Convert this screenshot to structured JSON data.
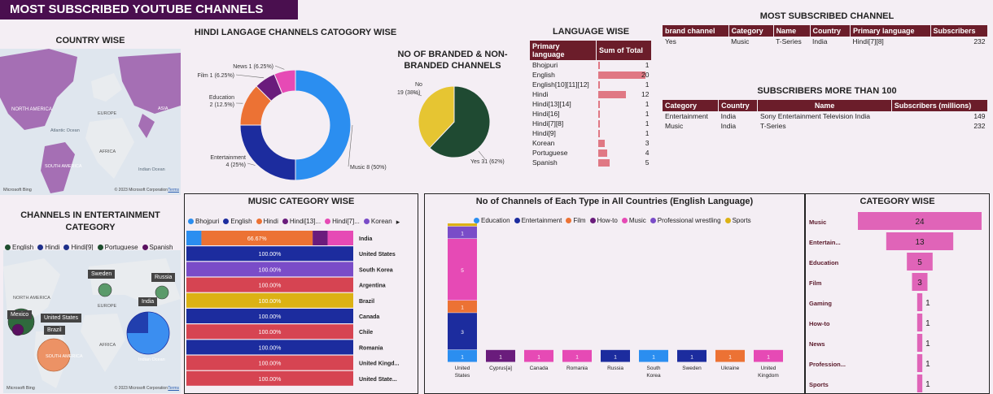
{
  "header": {
    "title": "MOST SUBSCRIBED YOUTUBE CHANNELS"
  },
  "country_map": {
    "title": "COUNTRY WISE",
    "labels": [
      "NORTH AMERICA",
      "Atlantic Ocean",
      "EUROPE",
      "AFRICA",
      "ASIA",
      "SOUTH AMERICA",
      "Indian Ocean"
    ],
    "credit": "© 2023 Microsoft Corporation",
    "credit_link": "Terms",
    "bing": "Microsoft Bing"
  },
  "ent_map": {
    "title": "CHANNELS IN ENTERTAINMENT CATEGORY",
    "legend": [
      {
        "name": "English",
        "color": "#1f4d2e"
      },
      {
        "name": "Hindi",
        "color": "#1f2f8a"
      },
      {
        "name": "Hindi[9]",
        "color": "#1f2f8a"
      },
      {
        "name": "Portuguese",
        "color": "#1f4d2e"
      },
      {
        "name": "Spanish",
        "color": "#5a1060"
      }
    ],
    "pins": [
      "Sweden",
      "Russia",
      "Mexico",
      "United States",
      "India",
      "Brazil"
    ],
    "labels": [
      "NORTH AMERICA",
      "EUROPE",
      "AFRICA",
      "SOUTH AMERICA",
      "Indian Ocean"
    ],
    "credit": "© 2023 Microsoft Corporation",
    "credit_link": "Terms",
    "bing": "Microsoft Bing"
  },
  "hindi_donut": {
    "title": "HINDI LANGAGE CHANNELS CATOGORY WISE"
  },
  "branded_pie": {
    "title": "NO OF BRANDED & NON-BRANDED CHANNELS"
  },
  "language_table": {
    "title": "LANGUAGE WISE",
    "columns": [
      "Primary language",
      "Sum of Total"
    ]
  },
  "most_sub": {
    "title": "MOST SUBSCRIBED CHANNEL",
    "columns": [
      "brand channel",
      "Category",
      "Name",
      "Country",
      "Primary language",
      "Subscribers"
    ],
    "row": [
      "Yes",
      "Music",
      "T-Series",
      "India",
      "Hindi[7][8]",
      "232"
    ]
  },
  "over100": {
    "title": "SUBSCRIBERS MORE THAN 100",
    "columns": [
      "Category",
      "Country",
      "Name",
      "Subscribers (millions)"
    ],
    "rows": [
      [
        "Entertainment",
        "India",
        "Sony Entertainment Television India",
        "149"
      ],
      [
        "Music",
        "India",
        "T-Series",
        "232"
      ]
    ]
  },
  "music_cat": {
    "title": "MUSIC CATEGORY WISE"
  },
  "channels_type": {
    "title": "No of Channels of Each Type in All Countries (English Language)"
  },
  "category_wise": {
    "title": "CATEGORY WISE"
  },
  "chart_data": [
    {
      "type": "pie",
      "id": "hindi",
      "slices": [
        {
          "label": "Music",
          "value": 8,
          "pct": "50%",
          "color": "#2b8ef0"
        },
        {
          "label": "Entertainment",
          "value": 4,
          "pct": "25%",
          "color": "#1c2c9e"
        },
        {
          "label": "Education",
          "value": 2,
          "pct": "12.5%",
          "color": "#ec7234"
        },
        {
          "label": "Film",
          "value": 1,
          "pct": "6.25%",
          "color": "#6a1c7c"
        },
        {
          "label": "News",
          "value": 1,
          "pct": "6.25%",
          "color": "#e64ab5"
        }
      ],
      "donut": true
    },
    {
      "type": "pie",
      "id": "branded",
      "slices": [
        {
          "label": "Yes",
          "value": 31,
          "pct": "62%",
          "color": "#1f4a32"
        },
        {
          "label": "No",
          "value": 19,
          "pct": "38%",
          "color": "#e6c532"
        }
      ]
    },
    {
      "type": "bar",
      "id": "language",
      "categories": [
        "Bhojpuri",
        "English",
        "English[10][11][12]",
        "Hindi",
        "Hindi[13][14]",
        "Hindi[16]",
        "Hindi[7][8]",
        "Hindi[9]",
        "Korean",
        "Portuguese",
        "Spanish"
      ],
      "values": [
        1,
        20,
        1,
        12,
        1,
        1,
        1,
        1,
        3,
        4,
        5
      ],
      "color": "#e07884"
    },
    {
      "type": "bar",
      "id": "music",
      "orientation": "horizontal-stacked-100",
      "legend": [
        {
          "name": "Bhojpuri",
          "color": "#2b8ef0"
        },
        {
          "name": "English",
          "color": "#1c2c9e"
        },
        {
          "name": "Hindi",
          "color": "#ec7234"
        },
        {
          "name": "Hindi[13]...",
          "color": "#6a1c7c"
        },
        {
          "name": "Hindi[7]...",
          "color": "#e64ab5"
        },
        {
          "name": "Korean",
          "color": "#7a4cc8"
        }
      ],
      "categories": [
        "India",
        "United States",
        "South Korea",
        "Argentina",
        "Brazil",
        "Canada",
        "Chile",
        "Romania",
        "United Kingd...",
        "United State..."
      ],
      "rows": [
        [
          {
            "color": "#2b8ef0",
            "pct": 9
          },
          {
            "color": "#ec7234",
            "pct": 66.67,
            "label": "66.67%"
          },
          {
            "color": "#6a1c7c",
            "pct": 9
          },
          {
            "color": "#e64ab5",
            "pct": 15.33
          }
        ],
        [
          {
            "color": "#1c2c9e",
            "pct": 100,
            "label": "100.00%"
          }
        ],
        [
          {
            "color": "#7a4cc8",
            "pct": 100,
            "label": "100.00%"
          }
        ],
        [
          {
            "color": "#d64452",
            "pct": 100,
            "label": "100.00%"
          }
        ],
        [
          {
            "color": "#dcb214",
            "pct": 100,
            "label": "100.00%"
          }
        ],
        [
          {
            "color": "#1c2c9e",
            "pct": 100,
            "label": "100.00%"
          }
        ],
        [
          {
            "color": "#d64452",
            "pct": 100,
            "label": "100.00%"
          }
        ],
        [
          {
            "color": "#1c2c9e",
            "pct": 100,
            "label": "100.00%"
          }
        ],
        [
          {
            "color": "#d64452",
            "pct": 100,
            "label": "100.00%"
          }
        ],
        [
          {
            "color": "#d64452",
            "pct": 100,
            "label": "100.00%"
          }
        ]
      ]
    },
    {
      "type": "bar",
      "id": "channels",
      "orientation": "vertical-stacked",
      "legend": [
        {
          "name": "Education",
          "color": "#2b8ef0"
        },
        {
          "name": "Entertainment",
          "color": "#1c2c9e"
        },
        {
          "name": "Film",
          "color": "#ec7234"
        },
        {
          "name": "How-to",
          "color": "#6a1c7c"
        },
        {
          "name": "Music",
          "color": "#e64ab5"
        },
        {
          "name": "Professional wrestling",
          "color": "#7a4cc8"
        },
        {
          "name": "Sports",
          "color": "#dcb214"
        }
      ],
      "categories": [
        "United States",
        "Cyprus[a]",
        "Canada",
        "Romania",
        "Russia",
        "South Korea",
        "Sweden",
        "Ukraine",
        "United Kingdom"
      ],
      "stacks": [
        [
          {
            "c": "#2b8ef0",
            "v": 1
          },
          {
            "c": "#1c2c9e",
            "v": 3
          },
          {
            "c": "#ec7234",
            "v": 1
          },
          {
            "c": "#e64ab5",
            "v": 5
          },
          {
            "c": "#7a4cc8",
            "v": 1
          },
          {
            "c": "#dcb214",
            "v": 1
          }
        ],
        [
          {
            "c": "#6a1c7c",
            "v": 1
          }
        ],
        [
          {
            "c": "#e64ab5",
            "v": 1
          }
        ],
        [
          {
            "c": "#e64ab5",
            "v": 1
          }
        ],
        [
          {
            "c": "#1c2c9e",
            "v": 1
          }
        ],
        [
          {
            "c": "#2b8ef0",
            "v": 1
          }
        ],
        [
          {
            "c": "#1c2c9e",
            "v": 1
          }
        ],
        [
          {
            "c": "#ec7234",
            "v": 1
          }
        ],
        [
          {
            "c": "#e64ab5",
            "v": 1
          }
        ]
      ]
    },
    {
      "type": "bar",
      "id": "category",
      "orientation": "funnel",
      "categories": [
        "Music",
        "Entertain...",
        "Education",
        "Film",
        "Gaming",
        "How-to",
        "News",
        "Profession...",
        "Sports"
      ],
      "values": [
        24,
        13,
        5,
        3,
        1,
        1,
        1,
        1,
        1
      ],
      "color": "#e064b8"
    }
  ]
}
